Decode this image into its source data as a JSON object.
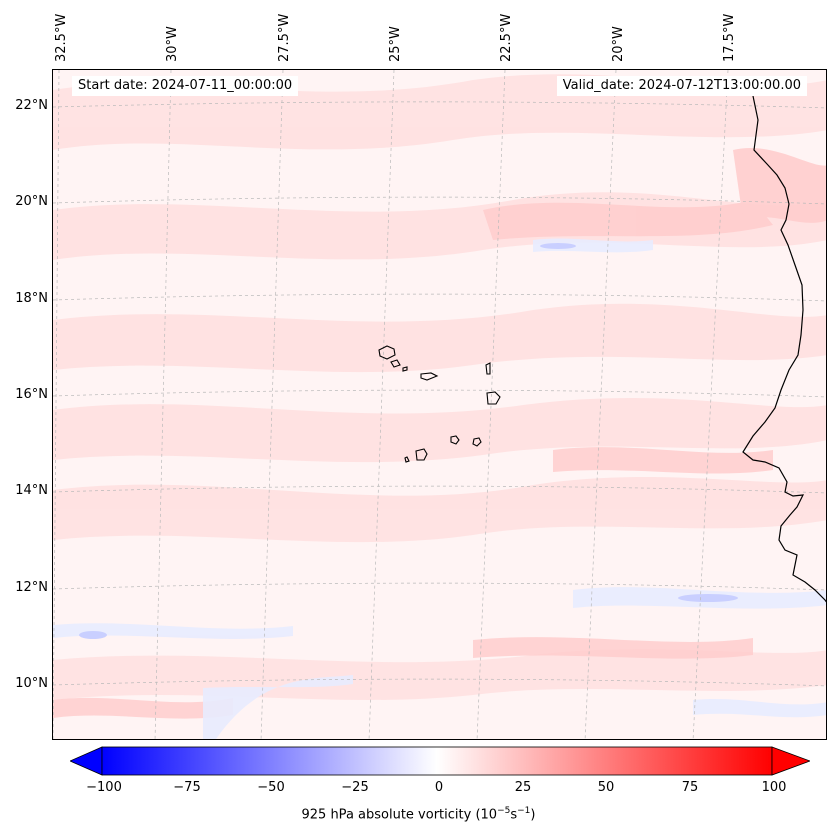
{
  "header": {
    "start_date": "Start date: 2024-07-11_00:00:00",
    "valid_date": "Valid_date: 2024-07-12T13:00:00.00"
  },
  "lon_ticks": [
    "32.5°W",
    "30°W",
    "27.5°W",
    "25°W",
    "22.5°W",
    "20°W",
    "17.5°W"
  ],
  "lat_ticks": [
    "22°N",
    "20°N",
    "18°N",
    "16°N",
    "14°N",
    "12°N",
    "10°N"
  ],
  "colorbar": {
    "ticks": [
      "−100",
      "−75",
      "−50",
      "−25",
      "0",
      "25",
      "50",
      "75",
      "100"
    ],
    "label": "925 hPa absolute vorticity (10",
    "label_exp1": "−5",
    "label_mid": "s",
    "label_exp2": "−1",
    "label_end": ")",
    "min": -100,
    "max": 100,
    "low_color": "#0000ff",
    "mid_color": "#ffffff",
    "high_color": "#ff0000"
  },
  "map": {
    "projection": "lambert-conformal",
    "extent_lon": [
      -33,
      -16.5
    ],
    "extent_lat": [
      9,
      23
    ],
    "field": "925 hPa absolute vorticity",
    "features": [
      "Cape Verde islands",
      "West African coastline (Mauritania, Senegal, Gambia, Guinea-Bissau, Guinea)"
    ]
  }
}
